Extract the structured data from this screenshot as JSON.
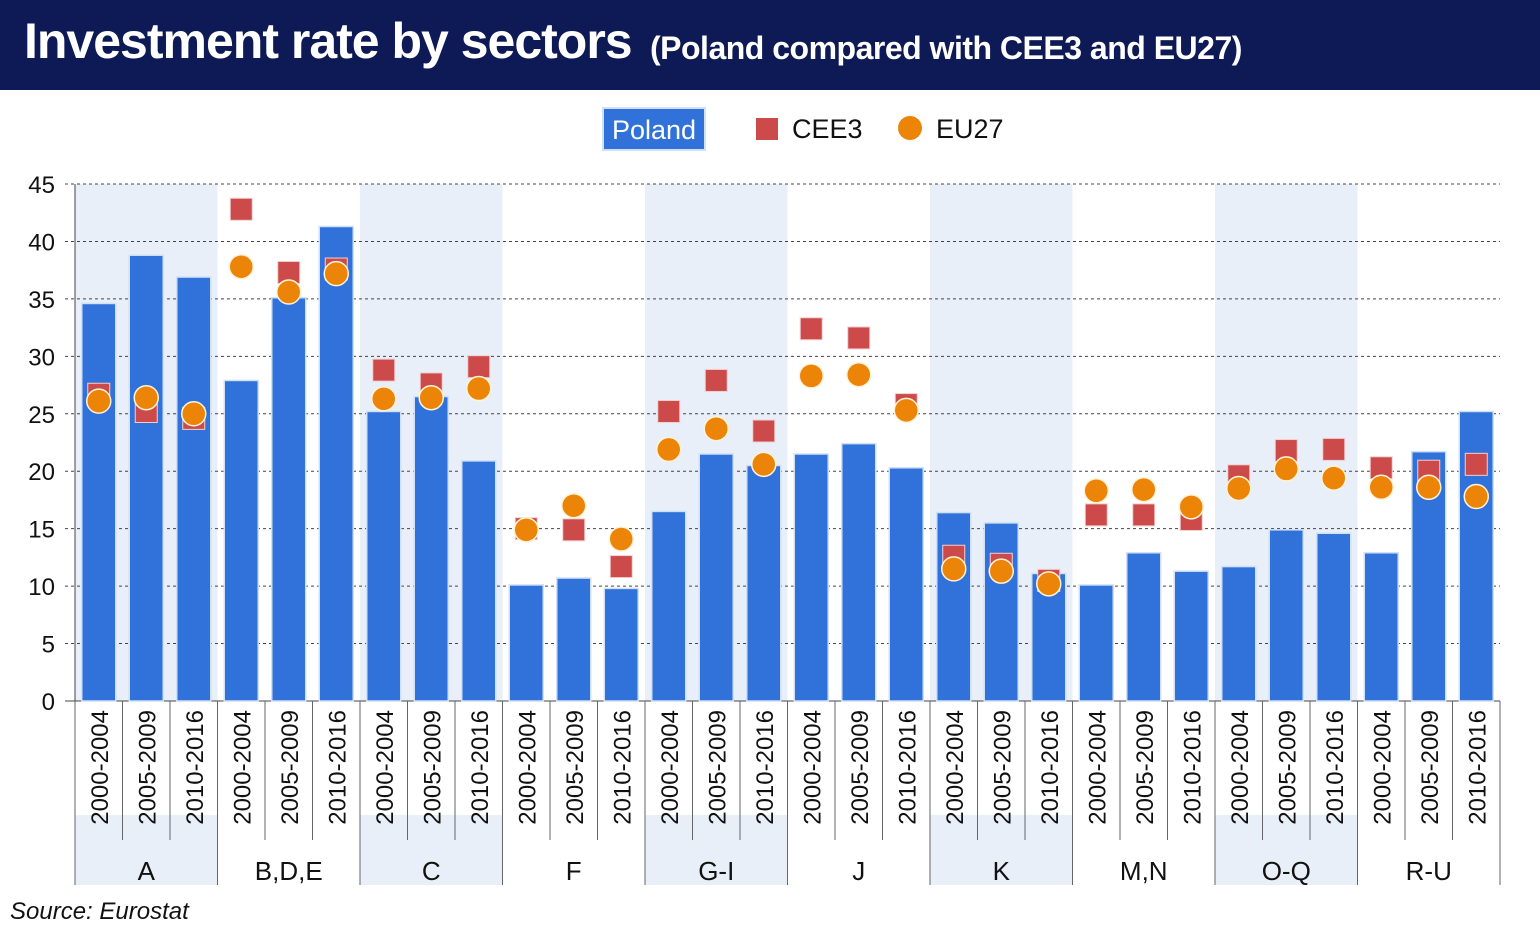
{
  "header": {
    "title": "Investment rate by sectors",
    "subtitle": "(Poland compared with CEE3 and EU27)"
  },
  "source": "Source: Eurostat",
  "colors": {
    "poland": "#3072d9",
    "cee3": "#cc4a4a",
    "eu27": "#ec8407",
    "header": "#0e1a55",
    "band": "#e8eff9"
  },
  "chart_data": {
    "type": "bar",
    "title": "Investment rate by sectors",
    "ylim": [
      0,
      45
    ],
    "yticks": [
      0,
      5,
      10,
      15,
      20,
      25,
      30,
      35,
      40,
      45
    ],
    "grid": true,
    "legend_position": "top",
    "groups": [
      "A",
      "B,D,E",
      "C",
      "F",
      "G-I",
      "J",
      "K",
      "M,N",
      "O-Q",
      "R-U"
    ],
    "periods": [
      "2000-2004",
      "2005-2009",
      "2010-2016"
    ],
    "series": [
      {
        "name": "Poland",
        "marker": "bar",
        "values": [
          34.6,
          38.8,
          36.9,
          27.9,
          35.1,
          41.3,
          25.2,
          26.5,
          20.9,
          10.1,
          10.7,
          9.8,
          16.5,
          21.5,
          20.5,
          21.5,
          22.4,
          20.3,
          16.4,
          15.5,
          11.1,
          10.1,
          12.9,
          11.3,
          11.7,
          14.9,
          14.6,
          12.9,
          21.7,
          25.2
        ]
      },
      {
        "name": "CEE3",
        "marker": "square",
        "values": [
          26.7,
          25.2,
          24.6,
          42.8,
          37.3,
          37.6,
          28.8,
          27.6,
          29.1,
          15.0,
          14.9,
          11.7,
          25.2,
          27.9,
          23.5,
          32.4,
          31.6,
          25.8,
          12.6,
          11.9,
          10.5,
          16.2,
          16.2,
          15.8,
          19.6,
          21.8,
          21.9,
          20.3,
          20.0,
          20.6
        ]
      },
      {
        "name": "EU27",
        "marker": "circle",
        "values": [
          26.1,
          26.4,
          25.0,
          37.8,
          35.6,
          37.2,
          26.3,
          26.4,
          27.2,
          14.9,
          17.0,
          14.1,
          21.9,
          23.7,
          20.6,
          28.3,
          28.4,
          25.3,
          11.5,
          11.3,
          10.2,
          18.3,
          18.4,
          16.9,
          18.5,
          20.2,
          19.4,
          18.6,
          18.6,
          17.8
        ]
      }
    ]
  }
}
